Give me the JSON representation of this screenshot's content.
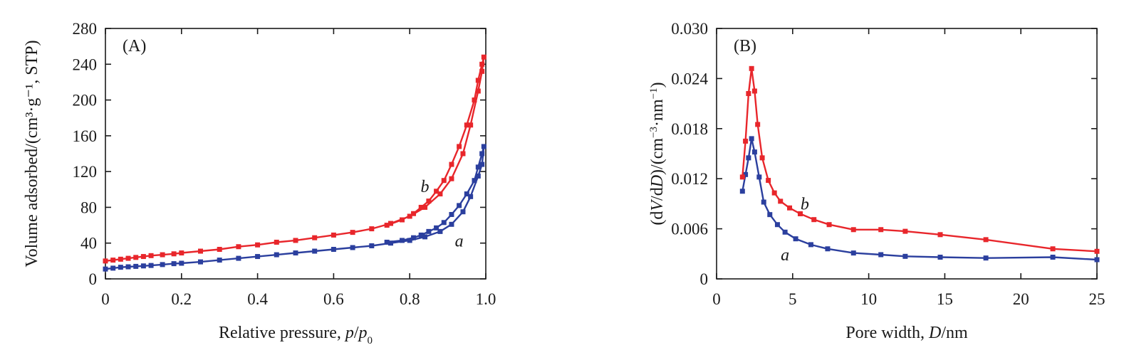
{
  "chart_data": [
    {
      "type": "line",
      "panel_label": "(A)",
      "xlabel_parts": [
        "Relative pressure, ",
        "p",
        "/",
        "p",
        "0"
      ],
      "ylabel": "Volume adsorbed/(cm³·g⁻¹, STP)",
      "xlim": [
        0,
        1.0
      ],
      "ylim": [
        0,
        280
      ],
      "xticks": [
        0,
        0.2,
        0.4,
        0.6,
        0.8,
        1.0
      ],
      "xtick_labels": [
        "0",
        "0.2",
        "0.4",
        "0.6",
        "0.8",
        "1.0"
      ],
      "yticks": [
        0,
        40,
        80,
        120,
        160,
        200,
        240,
        280
      ],
      "ytick_labels": [
        "0",
        "40",
        "80",
        "120",
        "160",
        "200",
        "240",
        "280"
      ],
      "grid": false,
      "series": [
        {
          "name": "a",
          "color": "#2b3f9e",
          "label_at": [
            0.93,
            36
          ],
          "x": [
            0.0,
            0.02,
            0.04,
            0.06,
            0.08,
            0.1,
            0.12,
            0.15,
            0.18,
            0.2,
            0.25,
            0.3,
            0.35,
            0.4,
            0.45,
            0.5,
            0.55,
            0.6,
            0.65,
            0.7,
            0.75,
            0.8,
            0.84,
            0.88,
            0.91,
            0.94,
            0.96,
            0.98,
            0.99,
            0.995,
            0.99,
            0.98,
            0.97,
            0.95,
            0.93,
            0.91,
            0.89,
            0.87,
            0.85,
            0.83,
            0.81,
            0.78,
            0.74
          ],
          "y": [
            11,
            12,
            13,
            13.5,
            14,
            14.5,
            15,
            16,
            17,
            17.5,
            19,
            21,
            23,
            25,
            27,
            29,
            31,
            33,
            35,
            37,
            40,
            43,
            47,
            53,
            61,
            75,
            92,
            115,
            128,
            148,
            140,
            125,
            110,
            95,
            82,
            72,
            63,
            57,
            53,
            49,
            46,
            43,
            41
          ]
        },
        {
          "name": "b",
          "color": "#e8262b",
          "label_at": [
            0.84,
            97
          ],
          "x": [
            0.0,
            0.02,
            0.04,
            0.06,
            0.08,
            0.1,
            0.12,
            0.15,
            0.18,
            0.2,
            0.25,
            0.3,
            0.35,
            0.4,
            0.45,
            0.5,
            0.55,
            0.6,
            0.65,
            0.7,
            0.75,
            0.8,
            0.84,
            0.88,
            0.91,
            0.94,
            0.96,
            0.98,
            0.99,
            0.995,
            0.99,
            0.98,
            0.97,
            0.95,
            0.93,
            0.91,
            0.89,
            0.87,
            0.85,
            0.83,
            0.81,
            0.78,
            0.74
          ],
          "y": [
            20,
            21,
            22,
            23,
            24,
            25,
            26,
            27,
            28,
            29,
            31,
            33,
            36,
            38,
            41,
            43,
            46,
            49,
            52,
            56,
            62,
            70,
            80,
            95,
            112,
            140,
            172,
            210,
            232,
            248,
            240,
            222,
            200,
            172,
            148,
            128,
            110,
            98,
            87,
            80,
            73,
            66,
            60
          ]
        }
      ]
    },
    {
      "type": "line",
      "panel_label": "(B)",
      "xlabel_parts": [
        "Pore width, ",
        "D",
        "/nm"
      ],
      "ylabel_parts": [
        "(d",
        "V",
        "/d",
        "D",
        ")/(cm",
        "−3",
        "·nm",
        "−1",
        ")"
      ],
      "xlim": [
        0,
        25
      ],
      "ylim": [
        0,
        0.03
      ],
      "xticks": [
        0,
        5,
        10,
        15,
        20,
        25
      ],
      "xtick_labels": [
        "0",
        "5",
        "10",
        "15",
        "20",
        "25"
      ],
      "yticks": [
        0,
        0.006,
        0.012,
        0.018,
        0.024,
        0.03
      ],
      "ytick_labels": [
        "0",
        "0.006",
        "0.012",
        "0.018",
        "0.024",
        "0.030"
      ],
      "grid": false,
      "series": [
        {
          "name": "a",
          "color": "#2b3f9e",
          "label_at": [
            4.5,
            0.0022
          ],
          "x": [
            1.7,
            1.9,
            2.1,
            2.3,
            2.5,
            2.8,
            3.1,
            3.5,
            4.0,
            4.5,
            5.2,
            6.2,
            7.3,
            9.0,
            10.8,
            12.4,
            14.7,
            17.7,
            22.1,
            25.0
          ],
          "y": [
            0.0105,
            0.0125,
            0.0145,
            0.0168,
            0.0152,
            0.0122,
            0.0092,
            0.0077,
            0.0065,
            0.0056,
            0.0048,
            0.0041,
            0.0036,
            0.0031,
            0.0029,
            0.0027,
            0.0026,
            0.0025,
            0.0026,
            0.0023
          ]
        },
        {
          "name": "b",
          "color": "#e8262b",
          "label_at": [
            5.8,
            0.0083
          ],
          "x": [
            1.7,
            1.9,
            2.1,
            2.3,
            2.5,
            2.7,
            3.0,
            3.4,
            3.8,
            4.2,
            4.8,
            5.5,
            6.4,
            7.4,
            9.0,
            10.8,
            12.4,
            14.7,
            17.7,
            22.1,
            25.0
          ],
          "y": [
            0.0122,
            0.0165,
            0.0222,
            0.0252,
            0.0225,
            0.0185,
            0.0145,
            0.0118,
            0.0103,
            0.0093,
            0.0085,
            0.0078,
            0.0071,
            0.0065,
            0.0059,
            0.0059,
            0.0057,
            0.0053,
            0.0047,
            0.0036,
            0.0033
          ]
        }
      ]
    }
  ]
}
